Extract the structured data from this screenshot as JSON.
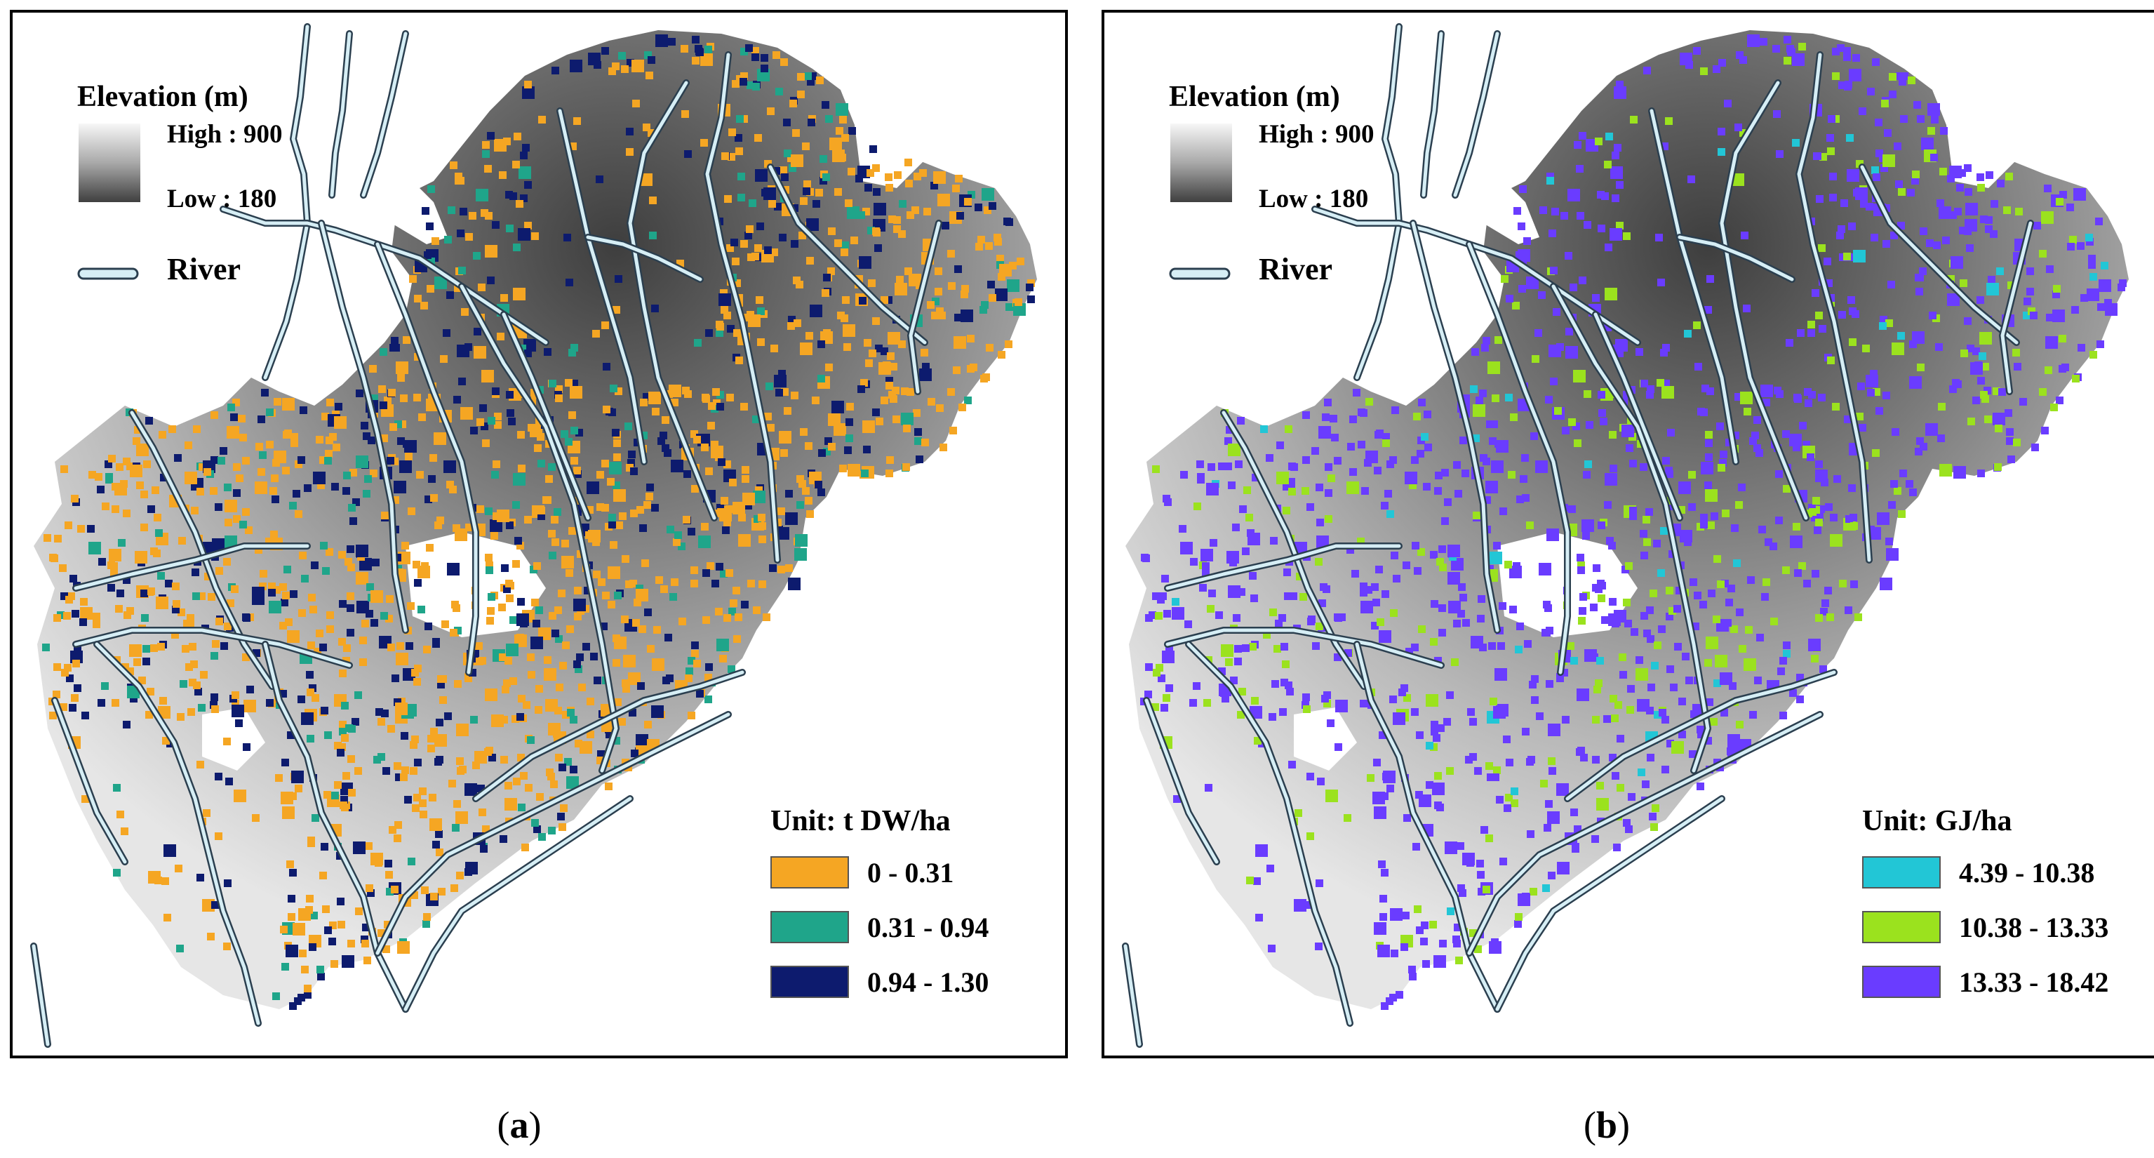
{
  "panels": [
    {
      "id": "a",
      "caption_open": "(",
      "caption_letter": "a",
      "caption_close": ")",
      "elevation_title": "Elevation (m)",
      "elevation_high": "High : 900",
      "elevation_low": "Low : 180",
      "river_label": "River",
      "unit_title": "Unit: t DW/ha",
      "classes": [
        {
          "label": "0 - 0.31",
          "color": "#f5a623"
        },
        {
          "label": "0.31 - 0.94",
          "color": "#1fa58a"
        },
        {
          "label": "0.94 - 1.30",
          "color": "#0d1b6e"
        }
      ]
    },
    {
      "id": "b",
      "caption_open": "(",
      "caption_letter": "b",
      "caption_close": ")",
      "elevation_title": "Elevation (m)",
      "elevation_high": "High : 900",
      "elevation_low": "Low : 180",
      "river_label": "River",
      "unit_title": "Unit: GJ/ha",
      "classes": [
        {
          "label": "4.39 - 10.38",
          "color": "#22c6d6"
        },
        {
          "label": "10.38 - 13.33",
          "color": "#9be21e"
        },
        {
          "label": "13.33 - 18.42",
          "color": "#6a3cff"
        }
      ]
    }
  ],
  "colors": {
    "river_fill": "#d6eef5",
    "river_outline": "#2b3f4f",
    "terrain_low": "#4a4a4a",
    "terrain_high": "#f2f2f2"
  }
}
